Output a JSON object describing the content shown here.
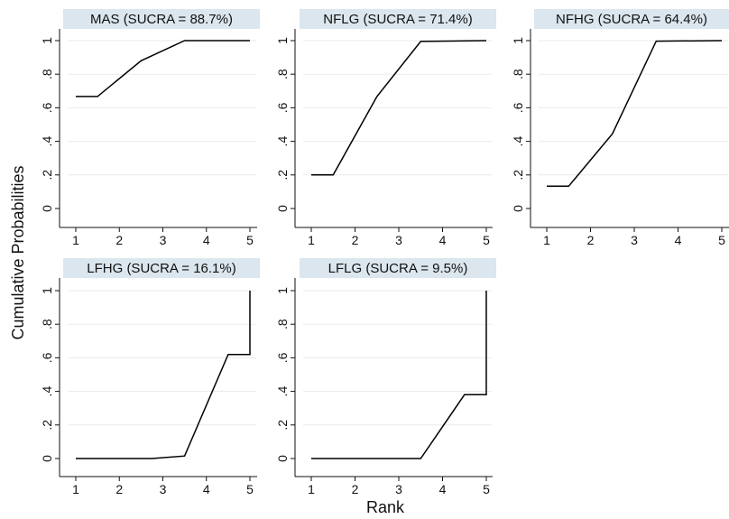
{
  "figure": {
    "ylabel": "Cumulative Probabilities",
    "xlabel": "Rank",
    "colors": {
      "text": "#111111",
      "highlight_tick": "#e8431f",
      "title_band": "#dbe6ee",
      "line": "#000000"
    }
  },
  "chart_data": [
    {
      "type": "line",
      "title": "MAS  (SUCRA = 88.7%)",
      "x": [
        1,
        1.5,
        2.5,
        3.5,
        5
      ],
      "y": [
        0.667,
        0.667,
        0.88,
        1.0,
        1.0
      ],
      "xticks": [
        "1",
        "2",
        "3",
        "4",
        "5"
      ],
      "yticks": [
        "0",
        ".2",
        ".4",
        ".6",
        ".8",
        "1"
      ],
      "xlim": [
        1,
        5
      ],
      "ylim": [
        0,
        1
      ],
      "highlight_rank": "1",
      "grid": true
    },
    {
      "type": "line",
      "title": "NFLG  (SUCRA = 71.4%)",
      "x": [
        1,
        1.5,
        2.5,
        3.5,
        5
      ],
      "y": [
        0.2,
        0.2,
        0.667,
        0.995,
        1.0
      ],
      "xticks": [
        "1",
        "2",
        "3",
        "4",
        "5"
      ],
      "yticks": [
        "0",
        ".2",
        ".4",
        ".6",
        ".8",
        "1"
      ],
      "xlim": [
        1,
        5
      ],
      "ylim": [
        0,
        1
      ],
      "highlight_rank": "2",
      "grid": true
    },
    {
      "type": "line",
      "title": "NFHG  (SUCRA = 64.4%)",
      "x": [
        1,
        1.5,
        2.5,
        3.5,
        5
      ],
      "y": [
        0.133,
        0.133,
        0.445,
        0.997,
        1.0
      ],
      "xticks": [
        "1",
        "2",
        "3",
        "4",
        "5"
      ],
      "yticks": [
        "0",
        ".2",
        ".4",
        ".6",
        ".8",
        "1"
      ],
      "xlim": [
        1,
        5
      ],
      "ylim": [
        0,
        1
      ],
      "highlight_rank": "3",
      "grid": true
    },
    {
      "type": "line",
      "title": "LFHG  (SUCRA = 16.1%)",
      "x": [
        1,
        2.75,
        3.5,
        4.5,
        5,
        5
      ],
      "y": [
        0.0,
        0.0,
        0.015,
        0.62,
        0.62,
        1.0
      ],
      "xticks": [
        "1",
        "2",
        "3",
        "4",
        "5"
      ],
      "yticks": [
        "0",
        ".2",
        ".4",
        ".6",
        ".8",
        "1"
      ],
      "xlim": [
        1,
        5
      ],
      "ylim": [
        0,
        1
      ],
      "highlight_rank": "4",
      "grid": true
    },
    {
      "type": "line",
      "title": "LFLG  (SUCRA = 9.5%)",
      "x": [
        1,
        3.5,
        4.5,
        5,
        5
      ],
      "y": [
        0.0,
        0.0,
        0.38,
        0.38,
        1.0
      ],
      "xticks": [
        "1",
        "2",
        "3",
        "4",
        "5"
      ],
      "yticks": [
        "0",
        ".2",
        ".4",
        ".6",
        ".8",
        "1"
      ],
      "xlim": [
        1,
        5
      ],
      "ylim": [
        0,
        1
      ],
      "highlight_rank": "5",
      "grid": true
    }
  ]
}
